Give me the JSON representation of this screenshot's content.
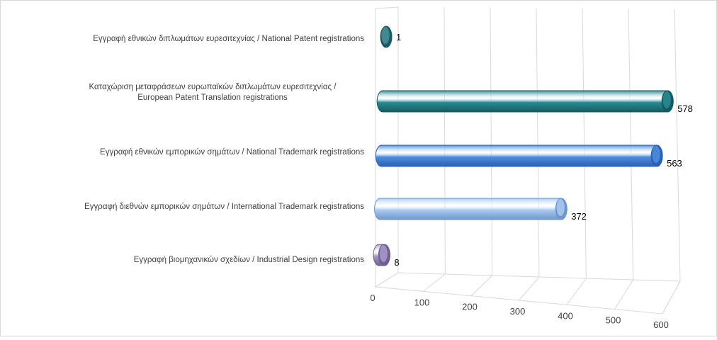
{
  "chart_data": {
    "type": "bar",
    "orientation": "horizontal",
    "style": "3d-cylinder",
    "categories": [
      [
        "Εγγραφή  εθνικών διπλωμάτων ευρεσιτεχνίας / National Patent registrations"
      ],
      [
        "Καταχώριση μεταφράσεων ευρωπαϊκών διπλωμάτων ευρεσιτεχνίας /",
        "European Patent Translation registrations"
      ],
      [
        "Εγγραφή  εθνικών εμπορικών σημάτων / National Trademark registrations"
      ],
      [
        "Εγγραφή  διεθνών εμπορικών σημάτων / International Trademark registrations"
      ],
      [
        "Εγγραφή  βιομηχανικών σχεδίων / Industrial Design registrations"
      ]
    ],
    "values": [
      1,
      578,
      563,
      372,
      8
    ],
    "data_labels": [
      "1",
      "578",
      "563",
      "372",
      "8"
    ],
    "colors": [
      "#4a8f99",
      "#2a8c94",
      "#4d8ddf",
      "#a9c9f0",
      "#a99bc8"
    ],
    "dark_colors": [
      "#1f5a63",
      "#145a60",
      "#2d60b0",
      "#6f97cc",
      "#6e5f93"
    ],
    "xlim": [
      0,
      600
    ],
    "xticks": [
      "0",
      "100",
      "200",
      "300",
      "400",
      "500",
      "600"
    ],
    "grid": true,
    "legend": "none"
  }
}
